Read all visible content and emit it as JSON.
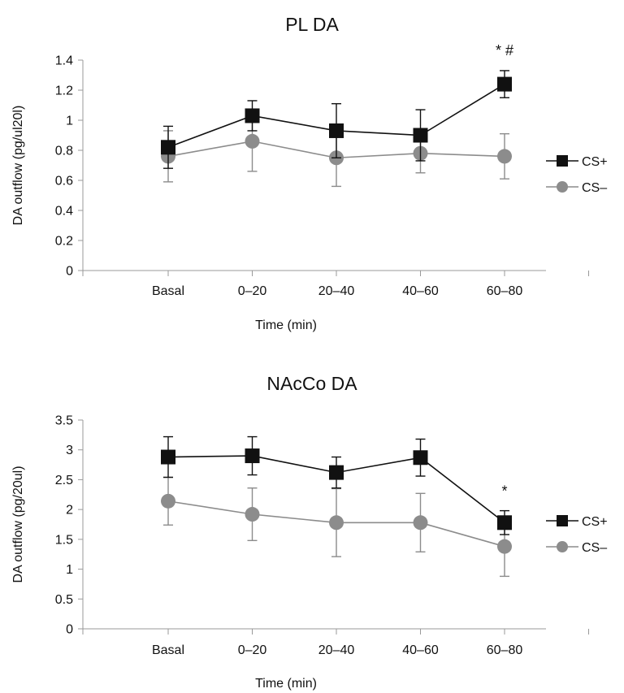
{
  "chart_data": [
    {
      "type": "line",
      "title": "PL DA",
      "xlabel": "Time (min)",
      "ylabel": "DA outflow (pg/ul20l)",
      "categories": [
        "Basal",
        "0–20",
        "20–40",
        "40–60",
        "60–80"
      ],
      "ylim": [
        0,
        1.4
      ],
      "yticks": [
        "0",
        "0.2",
        "0.4",
        "0.6",
        "0.8",
        "1",
        "1.2",
        "1.4"
      ],
      "grid": false,
      "legend": "right",
      "series": [
        {
          "name": "CS+",
          "color": "#111111",
          "marker": "square",
          "values": [
            0.82,
            1.03,
            0.93,
            0.9,
            1.24
          ],
          "err": [
            0.14,
            0.1,
            0.18,
            0.17,
            0.09
          ]
        },
        {
          "name": "CS–",
          "color": "#8c8c8c",
          "marker": "circle",
          "values": [
            0.76,
            0.86,
            0.75,
            0.78,
            0.76
          ],
          "err": [
            0.17,
            0.2,
            0.19,
            0.13,
            0.15
          ]
        }
      ],
      "annotations": [
        {
          "category": "60–80",
          "text": "* #"
        }
      ]
    },
    {
      "type": "line",
      "title": "NAcCo DA",
      "xlabel": "Time (min)",
      "ylabel": "DA outflow (pg/20ul)",
      "categories": [
        "Basal",
        "0–20",
        "20–40",
        "40–60",
        "60–80"
      ],
      "ylim": [
        0,
        3.5
      ],
      "yticks": [
        "0",
        "0.5",
        "1",
        "1.5",
        "2",
        "2.5",
        "3",
        "3.5"
      ],
      "grid": false,
      "legend": "right",
      "series": [
        {
          "name": "CS+",
          "color": "#111111",
          "marker": "square",
          "values": [
            2.88,
            2.9,
            2.62,
            2.87,
            1.78
          ],
          "err": [
            0.34,
            0.32,
            0.26,
            0.31,
            0.2
          ]
        },
        {
          "name": "CS–",
          "color": "#8c8c8c",
          "marker": "circle",
          "values": [
            2.14,
            1.92,
            1.78,
            1.78,
            1.38
          ],
          "err": [
            0.4,
            0.44,
            0.57,
            0.49,
            0.5
          ]
        }
      ],
      "annotations": [
        {
          "category": "60–80",
          "text": "*"
        }
      ]
    }
  ]
}
